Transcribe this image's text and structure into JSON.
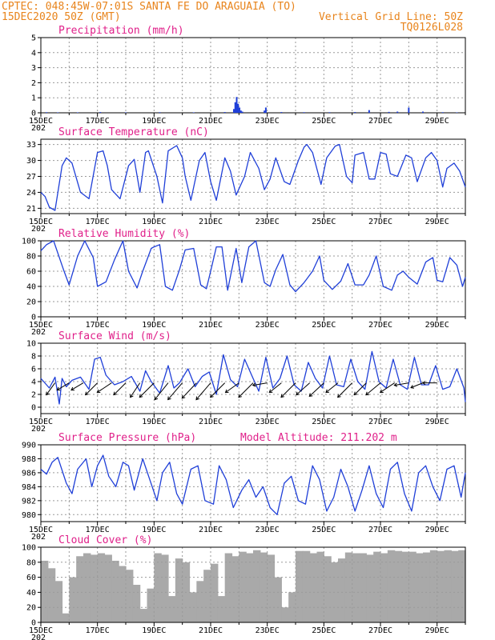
{
  "header": {
    "line1": "CPTEC:  048:45W-07:01S  SANTA FE DO ARAGUAIA (TO)",
    "line2": "15DEC2020 50Z (GMT)",
    "grid_note": "Vertical Grid Line: 50Z",
    "run_id": "TQ0126L028",
    "colors": {
      "header": "#e8841c",
      "title": "#e0208a",
      "series": "#1f3fd8",
      "cloud": "#a9a9a9"
    }
  },
  "chart_data": [
    {
      "type": "bar",
      "title": "Precipitation (mm/h)",
      "x_range": [
        15,
        30
      ],
      "x_ticks": [
        "15DEC",
        "17DEC",
        "19DEC",
        "21DEC",
        "23DEC",
        "25DEC",
        "27DEC",
        "29DEC"
      ],
      "ylim": [
        0,
        5
      ],
      "y_ticks": [
        "0",
        "1",
        "2",
        "3",
        "4",
        "5"
      ],
      "x_cut_label": "202",
      "grid": true,
      "x": [
        15.2,
        15.6,
        16.3,
        17.1,
        18.0,
        19.2,
        20.4,
        21.5,
        21.82,
        21.87,
        21.92,
        21.97,
        22.02,
        22.07,
        22.12,
        22.9,
        22.95,
        23.5,
        24.3,
        25.2,
        26.1,
        26.6,
        27.3,
        27.6,
        28.0,
        28.5,
        29.2,
        29.7
      ],
      "values": [
        0.04,
        0.03,
        0.03,
        0.05,
        0.03,
        0.04,
        0.03,
        0.05,
        0.25,
        0.7,
        1.05,
        0.6,
        0.35,
        0.15,
        0.08,
        0.15,
        0.35,
        0.05,
        0.04,
        0.04,
        0.05,
        0.18,
        0.06,
        0.08,
        0.35,
        0.08,
        0.04,
        0.03
      ]
    },
    {
      "type": "line",
      "title": "Surface Temperature (nC)",
      "x_range": [
        15,
        30
      ],
      "x_ticks": [
        "15DEC",
        "17DEC",
        "19DEC",
        "21DEC",
        "23DEC",
        "25DEC",
        "27DEC",
        "29DEC"
      ],
      "ylim": [
        20,
        34
      ],
      "y_ticks": [
        "21",
        "24",
        "27",
        "30",
        "33"
      ],
      "x_cut_label": "202",
      "grid": true,
      "x": [
        15.0,
        15.15,
        15.3,
        15.5,
        15.75,
        15.9,
        16.1,
        16.4,
        16.7,
        17.0,
        17.2,
        17.35,
        17.5,
        17.8,
        18.1,
        18.3,
        18.5,
        18.7,
        18.8,
        19.1,
        19.3,
        19.5,
        19.8,
        20.0,
        20.1,
        20.3,
        20.6,
        20.8,
        21.0,
        21.2,
        21.5,
        21.7,
        21.9,
        22.2,
        22.4,
        22.7,
        22.9,
        23.1,
        23.3,
        23.6,
        23.8,
        24.1,
        24.3,
        24.4,
        24.6,
        24.9,
        25.1,
        25.4,
        25.55,
        25.8,
        26.0,
        26.1,
        26.4,
        26.6,
        26.8,
        27.0,
        27.2,
        27.35,
        27.6,
        27.9,
        28.1,
        28.3,
        28.6,
        28.8,
        29.0,
        29.2,
        29.35,
        29.6,
        29.8,
        30.0
      ],
      "values": [
        24.0,
        23.2,
        21.2,
        20.6,
        29.0,
        30.5,
        29.5,
        24.0,
        22.8,
        31.5,
        31.8,
        29.0,
        24.5,
        22.8,
        29.0,
        30.2,
        24.0,
        31.5,
        31.8,
        27.0,
        22.0,
        31.8,
        32.8,
        30.5,
        27.0,
        22.5,
        30.0,
        31.5,
        26.0,
        22.5,
        30.5,
        28.0,
        23.5,
        27.0,
        31.5,
        28.5,
        24.5,
        26.5,
        30.5,
        26.0,
        25.5,
        30.0,
        32.5,
        33.0,
        31.5,
        25.5,
        30.5,
        32.7,
        33.0,
        27.0,
        25.8,
        31.0,
        31.5,
        26.5,
        26.5,
        31.5,
        31.2,
        27.5,
        27.0,
        31.0,
        30.5,
        26.0,
        30.5,
        31.5,
        30.0,
        25.0,
        28.5,
        29.5,
        28.0,
        25.0
      ],
      "overlay_values": [
        24.0,
        23.2,
        21.2,
        20.6,
        29.0,
        30.5,
        29.5,
        24.0,
        22.8,
        31.5,
        31.8,
        29.0,
        24.5,
        22.8,
        29.0,
        30.2,
        24.0,
        31.5,
        31.8,
        27.0,
        22.0,
        31.8,
        32.8,
        30.5,
        27.0,
        22.5,
        30.0,
        31.5,
        26.0,
        22.5,
        30.5,
        28.0,
        23.5,
        27.0,
        31.5,
        28.5,
        24.5,
        26.5,
        30.5,
        26.0,
        25.5,
        30.0,
        32.5,
        33.0,
        31.5,
        25.5,
        30.5,
        32.7,
        33.0,
        27.0,
        25.8,
        31.0,
        31.5,
        26.5,
        26.5,
        31.5,
        31.2,
        27.5,
        27.0,
        31.0,
        30.5,
        26.0,
        30.5,
        31.5,
        30.0,
        25.0,
        28.5,
        29.5,
        28.0,
        25.0
      ]
    },
    {
      "type": "line",
      "title": "Relative Humidity (%)",
      "x_range": [
        15,
        30
      ],
      "x_ticks": [
        "15DEC",
        "17DEC",
        "19DEC",
        "21DEC",
        "23DEC",
        "25DEC",
        "27DEC",
        "29DEC"
      ],
      "ylim": [
        0,
        100
      ],
      "y_ticks": [
        "0",
        "20",
        "40",
        "60",
        "80",
        "100"
      ],
      "x_cut_label": "202",
      "grid": true,
      "x": [
        15.0,
        15.2,
        15.45,
        15.8,
        16.0,
        16.3,
        16.55,
        16.85,
        17.0,
        17.3,
        17.6,
        17.9,
        18.1,
        18.4,
        18.6,
        18.9,
        19.0,
        19.2,
        19.4,
        19.65,
        19.9,
        20.1,
        20.4,
        20.65,
        20.85,
        21.0,
        21.2,
        21.4,
        21.6,
        21.9,
        22.1,
        22.35,
        22.6,
        22.9,
        23.1,
        23.3,
        23.55,
        23.8,
        24.0,
        24.3,
        24.6,
        24.85,
        25.0,
        25.3,
        25.6,
        25.85,
        26.1,
        26.4,
        26.6,
        26.85,
        27.1,
        27.4,
        27.6,
        27.8,
        28.0,
        28.3,
        28.6,
        28.85,
        29.0,
        29.2,
        29.45,
        29.7,
        29.9,
        30.0
      ],
      "values": [
        87,
        95,
        100,
        62,
        42,
        80,
        100,
        78,
        40,
        46,
        75,
        100,
        60,
        38,
        60,
        90,
        92,
        95,
        40,
        35,
        62,
        88,
        90,
        42,
        37,
        60,
        92,
        92,
        35,
        90,
        45,
        92,
        100,
        45,
        40,
        62,
        82,
        42,
        33,
        45,
        60,
        80,
        48,
        36,
        47,
        70,
        42,
        42,
        55,
        80,
        40,
        35,
        55,
        60,
        52,
        43,
        72,
        78,
        48,
        46,
        78,
        68,
        40,
        52
      ]
    },
    {
      "type": "line",
      "title": "Surface Wind (m/s)",
      "x_range": [
        15,
        30
      ],
      "x_ticks": [
        "15DEC",
        "17DEC",
        "19DEC",
        "21DEC",
        "23DEC",
        "25DEC",
        "27DEC",
        "29DEC"
      ],
      "ylim": [
        -1,
        10
      ],
      "y_ticks": [
        "0",
        "2",
        "4",
        "6",
        "8",
        "10"
      ],
      "x_cut_label": "202",
      "grid": true,
      "x": [
        15.0,
        15.3,
        15.5,
        15.65,
        15.75,
        15.9,
        16.1,
        16.4,
        16.7,
        16.9,
        17.1,
        17.3,
        17.6,
        17.9,
        18.2,
        18.5,
        18.7,
        18.9,
        19.2,
        19.5,
        19.7,
        19.9,
        20.2,
        20.45,
        20.7,
        20.95,
        21.2,
        21.45,
        21.7,
        21.95,
        22.2,
        22.45,
        22.7,
        22.95,
        23.2,
        23.45,
        23.7,
        23.95,
        24.2,
        24.45,
        24.7,
        24.95,
        25.2,
        25.45,
        25.7,
        25.95,
        26.2,
        26.45,
        26.7,
        26.95,
        27.2,
        27.45,
        27.7,
        27.95,
        28.2,
        28.45,
        28.7,
        28.95,
        29.2,
        29.45,
        29.7,
        29.95,
        30.0
      ],
      "values": [
        4.5,
        3.0,
        4.7,
        0.5,
        4.5,
        3.2,
        4.2,
        4.7,
        2.8,
        7.5,
        7.8,
        5.0,
        3.5,
        4.0,
        4.8,
        2.5,
        5.7,
        4.0,
        2.2,
        6.5,
        3.0,
        3.8,
        6.0,
        3.2,
        4.8,
        5.5,
        2.0,
        8.2,
        4.3,
        3.2,
        7.5,
        5.0,
        2.5,
        7.8,
        3.0,
        4.5,
        8.0,
        3.5,
        2.5,
        7.0,
        4.5,
        3.0,
        8.0,
        3.5,
        3.2,
        7.5,
        4.0,
        2.8,
        8.7,
        4.0,
        3.0,
        7.5,
        3.5,
        2.8,
        7.8,
        3.5,
        3.5,
        6.5,
        2.8,
        3.2,
        6.0,
        3.0,
        0.8
      ],
      "vector_u": [
        -1.8,
        -2.5,
        -2.5,
        -2.5,
        -3,
        -2.5,
        -2,
        -3,
        -2.8,
        -3,
        -3,
        -3,
        -3,
        -2.8,
        -3,
        -3,
        -2.5,
        -3,
        -2.8,
        -3,
        -2.5,
        -3,
        -2.5,
        -3,
        -3,
        -3,
        -2.5,
        -3
      ],
      "vector_v": [
        -2.5,
        -1.5,
        -1.5,
        -2.5,
        -2,
        -2.5,
        -3,
        -3,
        -3.5,
        -3.5,
        -3.2,
        -3.5,
        -3,
        -2,
        -3,
        -0.5,
        -2,
        -3,
        -2.5,
        -2.8,
        -2,
        -3,
        -2.5,
        -2.5,
        -2,
        -0.5,
        -1,
        0
      ]
    },
    {
      "type": "line",
      "title": "Surface Pressure (hPa)",
      "annotation": "Model Altitude: 211.202 m",
      "x_range": [
        15,
        30
      ],
      "x_ticks": [
        "15DEC",
        "17DEC",
        "19DEC",
        "21DEC",
        "23DEC",
        "25DEC",
        "27DEC",
        "29DEC"
      ],
      "ylim": [
        979,
        990
      ],
      "y_ticks": [
        "980",
        "982",
        "984",
        "986",
        "988",
        "990"
      ],
      "x_cut_label": "202",
      "grid": true,
      "x": [
        15.0,
        15.2,
        15.4,
        15.6,
        15.9,
        16.1,
        16.3,
        16.6,
        16.8,
        17.0,
        17.2,
        17.4,
        17.65,
        17.9,
        18.1,
        18.3,
        18.6,
        18.85,
        19.1,
        19.3,
        19.55,
        19.8,
        20.0,
        20.3,
        20.55,
        20.8,
        21.1,
        21.3,
        21.55,
        21.8,
        22.1,
        22.35,
        22.6,
        22.85,
        23.1,
        23.35,
        23.6,
        23.85,
        24.1,
        24.35,
        24.6,
        24.85,
        25.1,
        25.35,
        25.6,
        25.85,
        26.1,
        26.35,
        26.6,
        26.85,
        27.1,
        27.35,
        27.6,
        27.85,
        28.1,
        28.35,
        28.6,
        28.85,
        29.1,
        29.35,
        29.6,
        29.85,
        30.0
      ],
      "values": [
        986.5,
        985.8,
        987.5,
        988.2,
        984.5,
        983.0,
        986.5,
        988.0,
        984.0,
        987.0,
        988.5,
        985.5,
        984.0,
        987.5,
        987.0,
        983.5,
        988.0,
        985.0,
        982.0,
        986.0,
        987.5,
        983.0,
        981.5,
        986.5,
        987.0,
        982.0,
        981.5,
        987.0,
        985.0,
        981.0,
        983.5,
        985.0,
        982.5,
        984.0,
        981.0,
        980.0,
        984.5,
        985.5,
        982.0,
        981.5,
        987.0,
        985.0,
        980.5,
        982.5,
        986.5,
        984.0,
        980.5,
        983.5,
        987.0,
        983.0,
        981.0,
        986.5,
        987.5,
        983.0,
        980.5,
        986.0,
        987.0,
        984.0,
        982.0,
        986.5,
        987.0,
        982.5,
        986.0
      ]
    },
    {
      "type": "bar",
      "title": "Cloud Cover (%)",
      "x_range": [
        15,
        30
      ],
      "x_ticks": [
        "15DEC",
        "17DEC",
        "19DEC",
        "21DEC",
        "23DEC",
        "25DEC",
        "27DEC",
        "29DEC"
      ],
      "ylim": [
        0,
        100
      ],
      "y_ticks": [
        "0",
        "20",
        "40",
        "60",
        "80",
        "100"
      ],
      "x_cut_label": "202",
      "grid": true,
      "x": [
        15.0,
        15.25,
        15.5,
        15.75,
        16.0,
        16.25,
        16.5,
        16.75,
        17.0,
        17.25,
        17.5,
        17.75,
        18.0,
        18.25,
        18.5,
        18.75,
        19.0,
        19.25,
        19.5,
        19.75,
        20.0,
        20.25,
        20.5,
        20.75,
        21.0,
        21.25,
        21.5,
        21.75,
        22.0,
        22.25,
        22.5,
        22.75,
        23.0,
        23.25,
        23.5,
        23.75,
        24.0,
        24.25,
        24.5,
        24.75,
        25.0,
        25.25,
        25.5,
        25.75,
        26.0,
        26.25,
        26.5,
        26.75,
        27.0,
        27.25,
        27.5,
        27.75,
        28.0,
        28.25,
        28.5,
        28.75,
        29.0,
        29.25,
        29.5,
        29.75
      ],
      "values": [
        82,
        72,
        55,
        12,
        60,
        88,
        92,
        90,
        92,
        90,
        82,
        75,
        70,
        50,
        18,
        45,
        92,
        90,
        35,
        85,
        80,
        40,
        55,
        70,
        78,
        35,
        92,
        88,
        94,
        92,
        96,
        93,
        90,
        60,
        20,
        40,
        95,
        95,
        92,
        94,
        88,
        80,
        85,
        93,
        92,
        92,
        90,
        94,
        92,
        96,
        95,
        94,
        94,
        92,
        93,
        96,
        95,
        96,
        95,
        96
      ]
    }
  ]
}
